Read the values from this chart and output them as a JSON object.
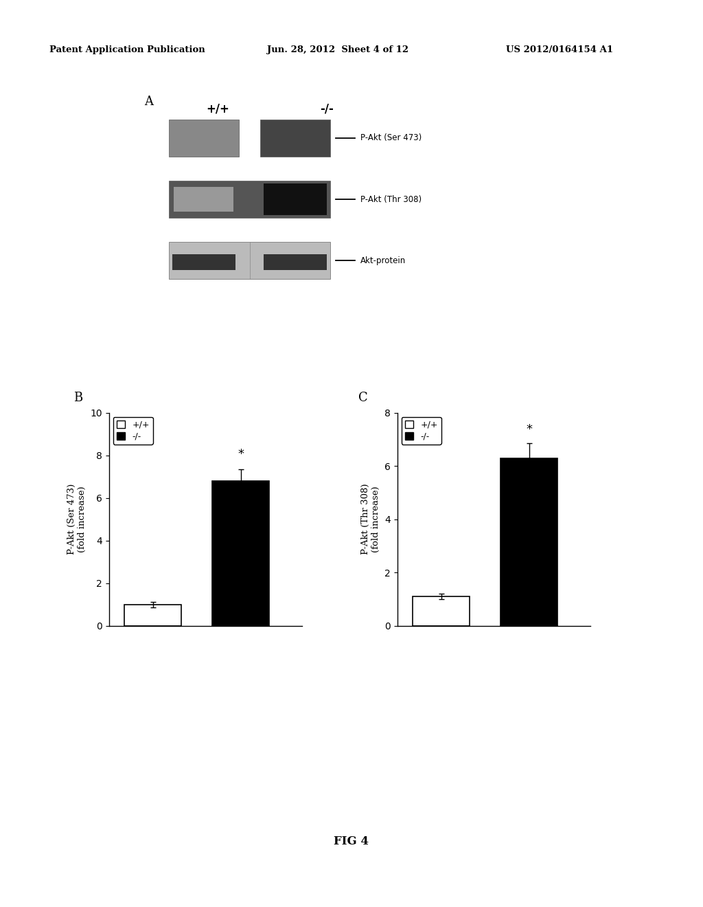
{
  "header_left": "Patent Application Publication",
  "header_center": "Jun. 28, 2012  Sheet 4 of 12",
  "header_right": "US 2012/0164154 A1",
  "panel_A_label": "A",
  "panel_B_label": "B",
  "panel_C_label": "C",
  "blot_labels_top": [
    "+/+",
    "-/-"
  ],
  "blot_row_labels": [
    "P-Akt (Ser 473)",
    "P-Akt (Thr 308)",
    "Akt-protein"
  ],
  "bar_B_values": [
    1.0,
    6.8
  ],
  "bar_B_errors": [
    0.12,
    0.55
  ],
  "bar_C_values": [
    1.1,
    6.3
  ],
  "bar_C_errors": [
    0.1,
    0.55
  ],
  "bar_B_ylim": [
    0,
    10
  ],
  "bar_C_ylim": [
    0,
    8
  ],
  "bar_B_yticks": [
    0,
    2,
    4,
    6,
    8,
    10
  ],
  "bar_C_yticks": [
    0,
    2,
    4,
    6,
    8
  ],
  "bar_B_ylabel": "P-Akt (Ser 473)\n(fold increase)",
  "bar_C_ylabel": "P-Akt (Thr 308)\n(fold increase)",
  "legend_labels": [
    "+/+",
    "-/-"
  ],
  "bar_colors_white": "#ffffff",
  "bar_colors_black": "#000000",
  "bar_edge_color": "#000000",
  "asterisk_label": "*",
  "fig_label": "FIG 4",
  "background_color": "#ffffff"
}
